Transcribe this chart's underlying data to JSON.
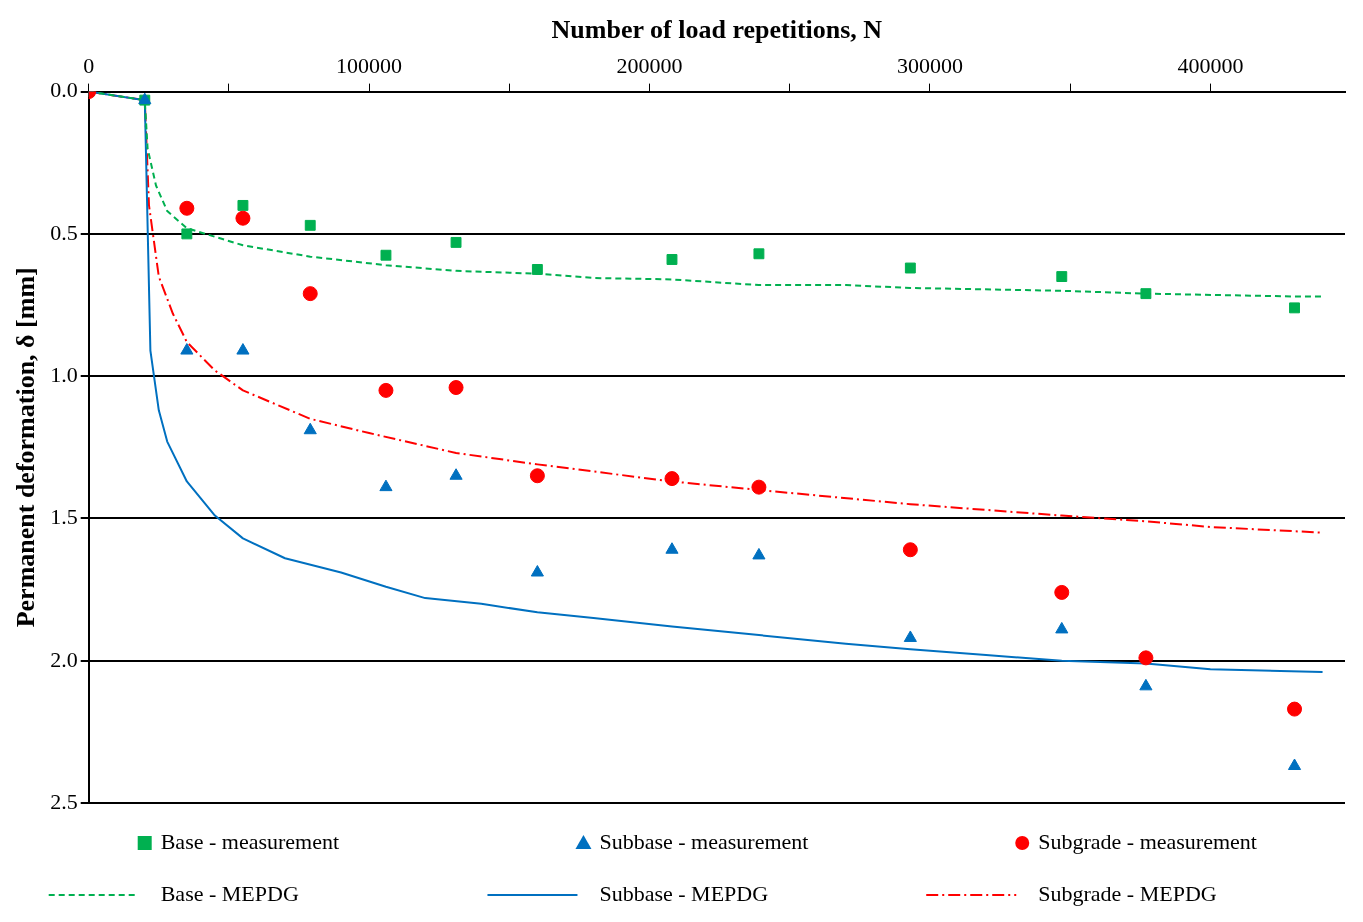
{
  "chart_data": {
    "type": "scatter",
    "xlabel": "Number of load repetitions, N",
    "ylabel": "Permanent deformation, δ [mm]",
    "xlim": [
      0,
      448000
    ],
    "xticks": [
      0,
      {
        "value": 50000,
        "label": null
      },
      100000,
      {
        "value": 150000,
        "label": null
      },
      200000,
      {
        "value": 250000,
        "label": null
      },
      300000,
      {
        "value": 350000,
        "label": null
      },
      400000
    ],
    "ylim": [
      2.5,
      0
    ],
    "yticks": [
      {
        "value": 0,
        "label": "0.0"
      },
      {
        "value": 0.5,
        "label": "0.5"
      },
      {
        "value": 1,
        "label": "1.0"
      },
      {
        "value": 1.5,
        "label": "1.5"
      },
      {
        "value": 2,
        "label": "2.0"
      },
      {
        "value": 2.5,
        "label": "2.5"
      }
    ],
    "grid": "y",
    "legend": "bottom",
    "series": [
      {
        "name": "Base - measurement",
        "type": "scatter",
        "marker": "square",
        "color": "#00b050",
        "x": [
          0,
          20000,
          35000,
          55000,
          79000,
          106000,
          131000,
          160000,
          208000,
          239000,
          293000,
          347000,
          377000,
          430000
        ],
        "values": [
          0,
          0.03,
          0.5,
          0.4,
          0.47,
          0.575,
          0.53,
          0.625,
          0.59,
          0.57,
          0.62,
          0.65,
          0.71,
          0.76
        ]
      },
      {
        "name": "Subbase - measurement",
        "type": "scatter",
        "marker": "triangle",
        "color": "#0070c0",
        "x": [
          0,
          20000,
          35000,
          55000,
          79000,
          106000,
          131000,
          160000,
          208000,
          239000,
          293000,
          347000,
          377000,
          430000
        ],
        "values": [
          0,
          0.03,
          0.91,
          0.91,
          1.19,
          1.39,
          1.35,
          1.69,
          1.61,
          1.63,
          1.92,
          1.89,
          2.09,
          2.37
        ]
      },
      {
        "name": "Subgrade - measurement",
        "type": "scatter",
        "marker": "circle",
        "color": "#ff0000",
        "x": [
          0,
          20000,
          35000,
          55000,
          79000,
          106000,
          131000,
          160000,
          208000,
          239000,
          293000,
          347000,
          377000,
          430000
        ],
        "values": [
          0,
          null,
          0.41,
          0.445,
          0.71,
          1.05,
          1.04,
          1.35,
          1.36,
          1.39,
          1.61,
          1.76,
          1.99,
          2.17
        ]
      },
      {
        "name": "Base - MEPDG",
        "type": "line",
        "marker": "none",
        "line_style": "dashed",
        "color": "#00b050",
        "x": [
          0,
          20000,
          21000,
          24000,
          28000,
          35000,
          55000,
          79000,
          106000,
          131000,
          160000,
          180000,
          208000,
          239000,
          270000,
          293000,
          347000,
          377000,
          430000,
          440000
        ],
        "values": [
          0,
          0.03,
          0.2,
          0.33,
          0.42,
          0.48,
          0.54,
          0.58,
          0.61,
          0.63,
          0.64,
          0.655,
          0.66,
          0.68,
          0.68,
          0.69,
          0.7,
          0.71,
          0.72,
          0.72
        ]
      },
      {
        "name": "Subbase - MEPDG",
        "type": "line",
        "marker": "none",
        "line_style": "solid",
        "color": "#0070c0",
        "x": [
          0,
          20000,
          22000,
          25000,
          28000,
          35000,
          45000,
          55000,
          70000,
          90000,
          106000,
          120000,
          140000,
          160000,
          180000,
          208000,
          239000,
          270000,
          293000,
          320000,
          347000,
          377000,
          400000,
          440000
        ],
        "values": [
          0,
          0.03,
          0.91,
          1.12,
          1.23,
          1.37,
          1.49,
          1.57,
          1.64,
          1.69,
          1.74,
          1.78,
          1.8,
          1.83,
          1.85,
          1.88,
          1.91,
          1.94,
          1.96,
          1.98,
          2,
          2.01,
          2.03,
          2.04
        ]
      },
      {
        "name": "Subgrade - MEPDG",
        "type": "line",
        "marker": "none",
        "line_style": "dashdot",
        "color": "#ff0000",
        "x": [
          0,
          20000,
          21500,
          25000,
          30000,
          35000,
          45000,
          55000,
          79000,
          100000,
          131000,
          160000,
          208000,
          239000,
          293000,
          347000,
          377000,
          400000,
          440000
        ],
        "values": [
          0,
          0.03,
          0.4,
          0.65,
          0.78,
          0.88,
          0.98,
          1.05,
          1.15,
          1.2,
          1.27,
          1.31,
          1.37,
          1.4,
          1.45,
          1.49,
          1.51,
          1.53,
          1.55
        ]
      }
    ]
  }
}
